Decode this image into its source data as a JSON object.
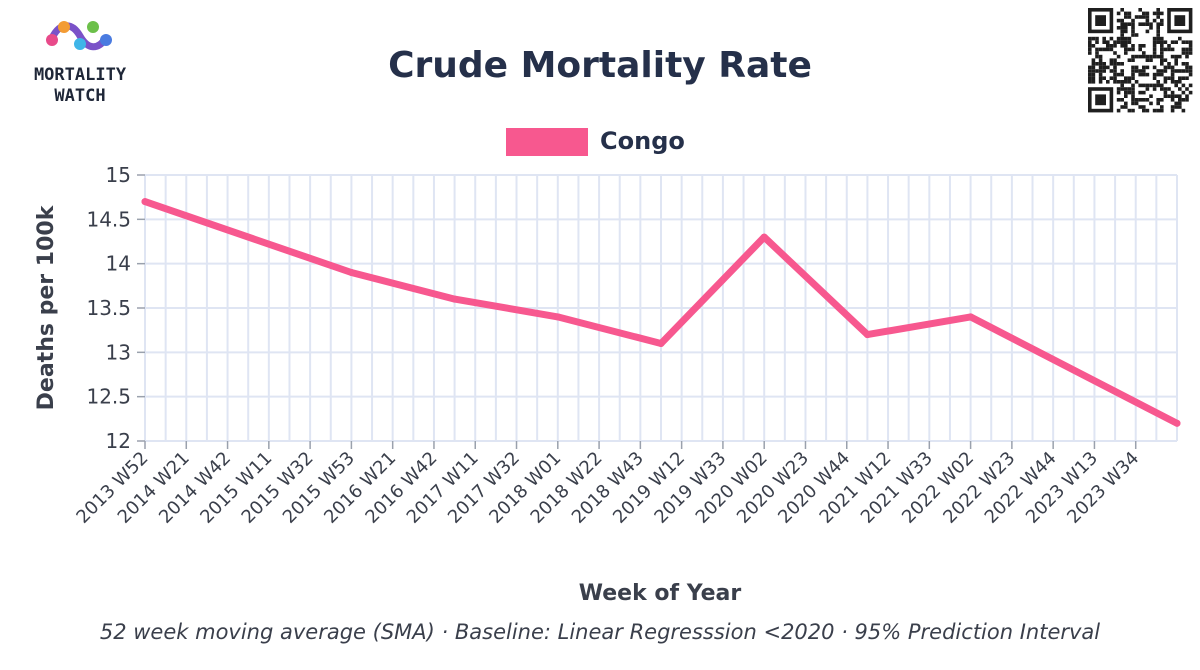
{
  "brand": {
    "line1": "MORTALITY",
    "line2": "WATCH"
  },
  "caption": "52 week moving average (SMA) · Baseline: Linear Regresssion <2020 · 95% Prediction Interval",
  "colors": {
    "series": "#f7588f",
    "grid": "#dfe5f3",
    "text": "#25304a"
  },
  "chart_data": {
    "type": "line",
    "title": "Crude Mortality Rate",
    "xlabel": "Week of Year",
    "ylabel": "Deaths per 100k",
    "ylim": [
      12,
      15
    ],
    "yticks": [
      12,
      12.5,
      13,
      13.5,
      14,
      14.5,
      15
    ],
    "ytick_labels": [
      "12",
      "12.5",
      "13",
      "13.5",
      "14",
      "14.5",
      "15"
    ],
    "grid": true,
    "legend_position": "top-center",
    "categories": [
      "2013 W52",
      "2014 W21",
      "2014 W42",
      "2015 W11",
      "2015 W32",
      "2015 W53",
      "2016 W21",
      "2016 W42",
      "2017 W11",
      "2017 W32",
      "2018 W01",
      "2018 W22",
      "2018 W43",
      "2019 W12",
      "2019 W33",
      "2020 W02",
      "2020 W23",
      "2020 W44",
      "2021 W12",
      "2021 W33",
      "2022 W02",
      "2022 W23",
      "2022 W44",
      "2023 W13",
      "2023 W34"
    ],
    "x_max_index": 25,
    "series": [
      {
        "name": "Congo",
        "color": "#f7588f",
        "points": [
          {
            "x": 0,
            "y": 14.7
          },
          {
            "x": 5,
            "y": 13.9
          },
          {
            "x": 7.5,
            "y": 13.6
          },
          {
            "x": 10,
            "y": 13.4
          },
          {
            "x": 12.5,
            "y": 13.1
          },
          {
            "x": 15,
            "y": 14.3
          },
          {
            "x": 17.5,
            "y": 13.2
          },
          {
            "x": 20,
            "y": 13.4
          },
          {
            "x": 25,
            "y": 12.2
          }
        ]
      }
    ]
  }
}
